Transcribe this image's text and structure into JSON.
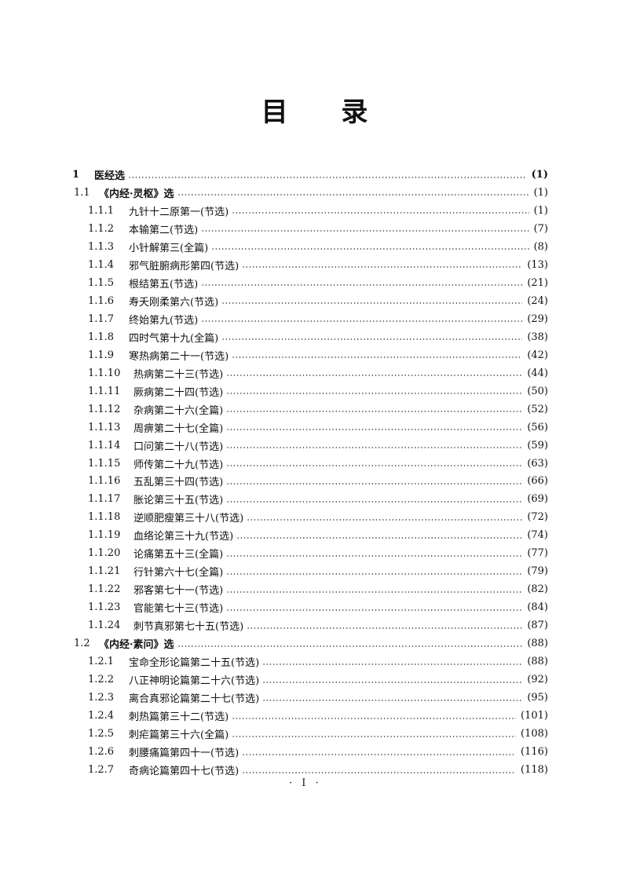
{
  "title": [
    "目",
    "录"
  ],
  "entries": [
    {
      "level": 0,
      "num": "1",
      "title": "医经选",
      "page": "(1)"
    },
    {
      "level": 1,
      "num": "1.1",
      "title": "《内经·灵枢》选",
      "page": "(1)"
    },
    {
      "level": 2,
      "num": "1.1.1",
      "title": "九针十二原第一(节选)",
      "page": "(1)"
    },
    {
      "level": 2,
      "num": "1.1.2",
      "title": "本输第二(节选)",
      "page": "(7)"
    },
    {
      "level": 2,
      "num": "1.1.3",
      "title": "小针解第三(全篇)",
      "page": "(8)"
    },
    {
      "level": 2,
      "num": "1.1.4",
      "title": "邪气脏腑病形第四(节选)",
      "page": "(13)"
    },
    {
      "level": 2,
      "num": "1.1.5",
      "title": "根结第五(节选)",
      "page": "(21)"
    },
    {
      "level": 2,
      "num": "1.1.6",
      "title": "寿夭刚柔第六(节选)",
      "page": "(24)"
    },
    {
      "level": 2,
      "num": "1.1.7",
      "title": "终始第九(节选)",
      "page": "(29)"
    },
    {
      "level": 2,
      "num": "1.1.8",
      "title": "四时气第十九(全篇)",
      "page": "(38)"
    },
    {
      "level": 2,
      "num": "1.1.9",
      "title": "寒热病第二十一(节选)",
      "page": "(42)"
    },
    {
      "level": 2,
      "num": "1.1.10",
      "title": "热病第二十三(节选)",
      "page": "(44)"
    },
    {
      "level": 2,
      "num": "1.1.11",
      "title": "厥病第二十四(节选)",
      "page": "(50)"
    },
    {
      "level": 2,
      "num": "1.1.12",
      "title": "杂病第二十六(全篇)",
      "page": "(52)"
    },
    {
      "level": 2,
      "num": "1.1.13",
      "title": "周痹第二十七(全篇)",
      "page": "(56)"
    },
    {
      "level": 2,
      "num": "1.1.14",
      "title": "口问第二十八(节选)",
      "page": "(59)"
    },
    {
      "level": 2,
      "num": "1.1.15",
      "title": "师传第二十九(节选)",
      "page": "(63)"
    },
    {
      "level": 2,
      "num": "1.1.16",
      "title": "五乱第三十四(节选)",
      "page": "(66)"
    },
    {
      "level": 2,
      "num": "1.1.17",
      "title": "胀论第三十五(节选)",
      "page": "(69)"
    },
    {
      "level": 2,
      "num": "1.1.18",
      "title": "逆顺肥瘦第三十八(节选)",
      "page": "(72)"
    },
    {
      "level": 2,
      "num": "1.1.19",
      "title": "血络论第三十九(节选)",
      "page": "(74)"
    },
    {
      "level": 2,
      "num": "1.1.20",
      "title": "论痛第五十三(全篇)",
      "page": "(77)"
    },
    {
      "level": 2,
      "num": "1.1.21",
      "title": "行针第六十七(全篇)",
      "page": "(79)"
    },
    {
      "level": 2,
      "num": "1.1.22",
      "title": "邪客第七十一(节选)",
      "page": "(82)"
    },
    {
      "level": 2,
      "num": "1.1.23",
      "title": "官能第七十三(节选)",
      "page": "(84)"
    },
    {
      "level": 2,
      "num": "1.1.24",
      "title": "刺节真邪第七十五(节选)",
      "page": "(87)"
    },
    {
      "level": 1,
      "num": "1.2",
      "title": "《内经·素问》选",
      "page": "(88)"
    },
    {
      "level": 2,
      "num": "1.2.1",
      "title": "宝命全形论篇第二十五(节选)",
      "page": "(88)"
    },
    {
      "level": 2,
      "num": "1.2.2",
      "title": "八正神明论篇第二十六(节选)",
      "page": "(92)"
    },
    {
      "level": 2,
      "num": "1.2.3",
      "title": "离合真邪论篇第二十七(节选)",
      "page": "(95)"
    },
    {
      "level": 2,
      "num": "1.2.4",
      "title": "刺热篇第三十二(节选)",
      "page": "(101)"
    },
    {
      "level": 2,
      "num": "1.2.5",
      "title": "刺疟篇第三十六(全篇)",
      "page": "(108)"
    },
    {
      "level": 2,
      "num": "1.2.6",
      "title": "刺腰痛篇第四十一(节选)",
      "page": "(116)"
    },
    {
      "level": 2,
      "num": "1.2.7",
      "title": "奇病论篇第四十七(节选)",
      "page": "(118)"
    }
  ],
  "footer": {
    "page_label": "· I ·"
  }
}
